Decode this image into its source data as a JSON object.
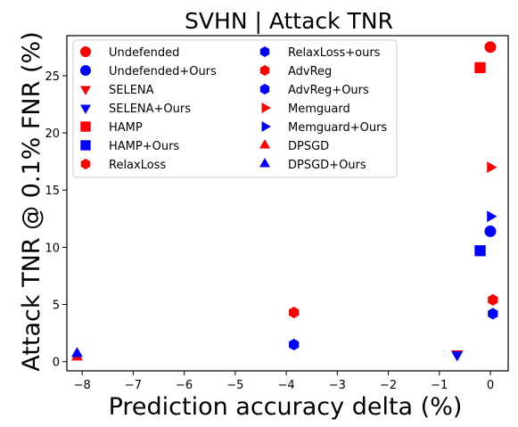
{
  "chart_data": {
    "type": "scatter",
    "title": "SVHN | Attack TNR",
    "xlabel": "Prediction accuracy delta (%)",
    "ylabel": "Attack TNR @ 0.1% FNR (%)",
    "xlim": [
      -8.3,
      0.35
    ],
    "ylim": [
      -0.8,
      28.5
    ],
    "xticks": [
      -8,
      -7,
      -6,
      -5,
      -4,
      -3,
      -2,
      -1,
      0
    ],
    "yticks": [
      0,
      5,
      10,
      15,
      20,
      25
    ],
    "legend_position": "upper-left",
    "legend_columns": 2,
    "series": [
      {
        "name": "Undefended",
        "color": "#ff0000",
        "marker": "circle",
        "x": [
          0.0
        ],
        "y": [
          27.5
        ]
      },
      {
        "name": "Undefended+Ours",
        "color": "#0000ff",
        "marker": "circle",
        "x": [
          0.0
        ],
        "y": [
          11.4
        ]
      },
      {
        "name": "SELENA",
        "color": "#ff0000",
        "marker": "triangle-down",
        "x": [
          -0.65
        ],
        "y": [
          0.7
        ]
      },
      {
        "name": "SELENA+Ours",
        "color": "#0000ff",
        "marker": "triangle-down",
        "x": [
          -0.65
        ],
        "y": [
          0.6
        ]
      },
      {
        "name": "HAMP",
        "color": "#ff0000",
        "marker": "square",
        "x": [
          -0.2
        ],
        "y": [
          25.7
        ]
      },
      {
        "name": "HAMP+Ours",
        "color": "#0000ff",
        "marker": "square",
        "x": [
          -0.2
        ],
        "y": [
          9.7
        ]
      },
      {
        "name": "RelaxLoss",
        "color": "#ff0000",
        "marker": "hexagon",
        "x": [
          -3.85
        ],
        "y": [
          4.3
        ]
      },
      {
        "name": "RelaxLoss+ours",
        "color": "#0000ff",
        "marker": "hexagon",
        "x": [
          -3.85
        ],
        "y": [
          1.5
        ]
      },
      {
        "name": "AdvReg",
        "color": "#ff0000",
        "marker": "hexagon",
        "x": [
          0.05
        ],
        "y": [
          5.4
        ]
      },
      {
        "name": "AdvReg+Ours",
        "color": "#0000ff",
        "marker": "hexagon",
        "x": [
          0.05
        ],
        "y": [
          4.2
        ]
      },
      {
        "name": "Memguard",
        "color": "#ff0000",
        "marker": "triangle-right",
        "x": [
          0.0
        ],
        "y": [
          17.0
        ]
      },
      {
        "name": "Memguard+Ours",
        "color": "#0000ff",
        "marker": "triangle-right",
        "x": [
          0.0
        ],
        "y": [
          12.7
        ]
      },
      {
        "name": "DPSGD",
        "color": "#ff0000",
        "marker": "triangle-up",
        "x": [
          -8.1
        ],
        "y": [
          0.4
        ]
      },
      {
        "name": "DPSGD+Ours",
        "color": "#0000ff",
        "marker": "triangle-up",
        "x": [
          -8.1
        ],
        "y": [
          0.7
        ]
      }
    ]
  }
}
